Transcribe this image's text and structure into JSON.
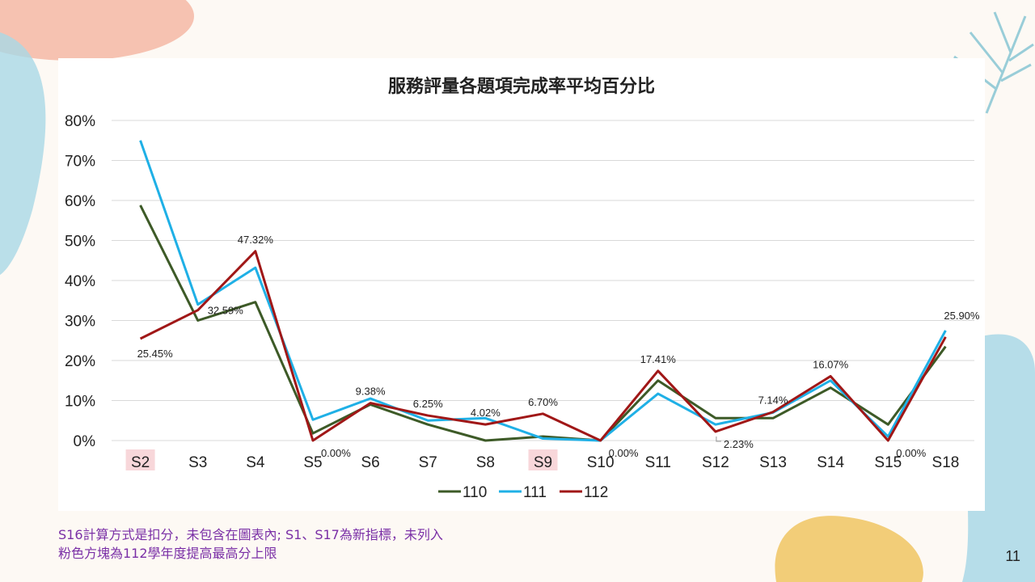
{
  "slide": {
    "notes": [
      "S16計算方式是扣分，未包含在圖表內; S1、S17為新指標，未列入",
      "粉色方塊為112學年度提高最高分上限"
    ],
    "page_number": "11"
  },
  "colors": {
    "s110": "#3d5a27",
    "s111": "#1fb0e6",
    "s112": "#a01717",
    "highlight": "#f8d7da",
    "note": "#7a2fa6"
  },
  "chart_data": {
    "type": "line",
    "title": "服務評量各題項完成率平均百分比",
    "categories": [
      "S2",
      "S3",
      "S4",
      "S5",
      "S6",
      "S7",
      "S8",
      "S9",
      "S10",
      "S11",
      "S12",
      "S13",
      "S14",
      "S15",
      "S18"
    ],
    "highlighted_categories": [
      "S2",
      "S9"
    ],
    "ylim": [
      0,
      80
    ],
    "yticks": [
      0,
      10,
      20,
      30,
      40,
      50,
      60,
      70,
      80
    ],
    "ytick_labels": [
      "0%",
      "10%",
      "20%",
      "30%",
      "40%",
      "50%",
      "60%",
      "70%",
      "80%"
    ],
    "grid": true,
    "legend_position": "bottom",
    "series": [
      {
        "name": "110",
        "color_key": "s110",
        "values": [
          58.8,
          30.0,
          34.6,
          1.8,
          9.0,
          4.0,
          0.0,
          1.0,
          0.0,
          15.0,
          5.6,
          5.6,
          13.2,
          4.0,
          23.5
        ]
      },
      {
        "name": "111",
        "color_key": "s111",
        "values": [
          75.0,
          34.0,
          43.2,
          5.2,
          10.5,
          5.0,
          5.6,
          0.5,
          0.0,
          11.7,
          4.0,
          7.0,
          15.0,
          1.0,
          27.5
        ]
      },
      {
        "name": "112",
        "color_key": "s112",
        "values": [
          25.45,
          32.59,
          47.32,
          0.0,
          9.38,
          6.25,
          4.02,
          6.7,
          0.0,
          17.41,
          2.23,
          7.14,
          16.07,
          0.0,
          25.9
        ],
        "data_labels": [
          "25.45%",
          "32.59%",
          "47.32%",
          "0.00%",
          "9.38%",
          "6.25%",
          "4.02%",
          "6.70%",
          "0.00%",
          "17.41%",
          "2.23%",
          "7.14%",
          "16.07%",
          "0.00%",
          "25.90%"
        ]
      }
    ]
  }
}
